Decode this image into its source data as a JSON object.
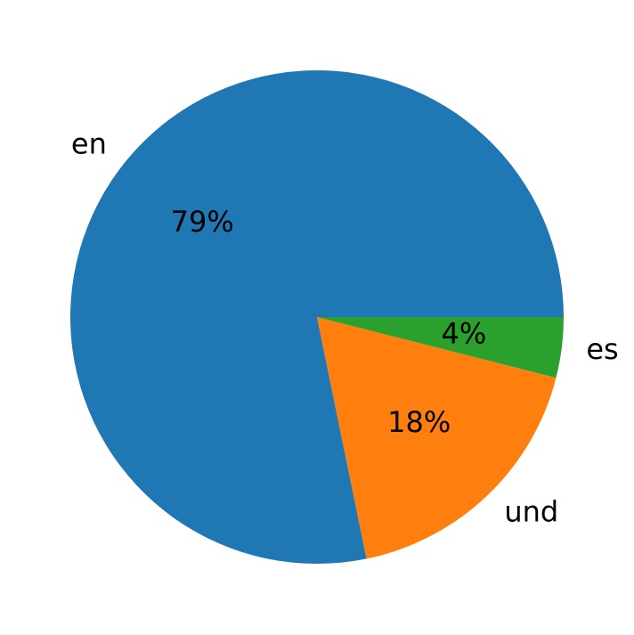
{
  "chart_data": {
    "type": "pie",
    "categories": [
      "en",
      "und",
      "es"
    ],
    "values": [
      79,
      18,
      4
    ],
    "value_labels": [
      "79%",
      "18%",
      "4%"
    ],
    "colors": [
      "#1f77b4",
      "#ff7f0e",
      "#2ca02c"
    ]
  }
}
